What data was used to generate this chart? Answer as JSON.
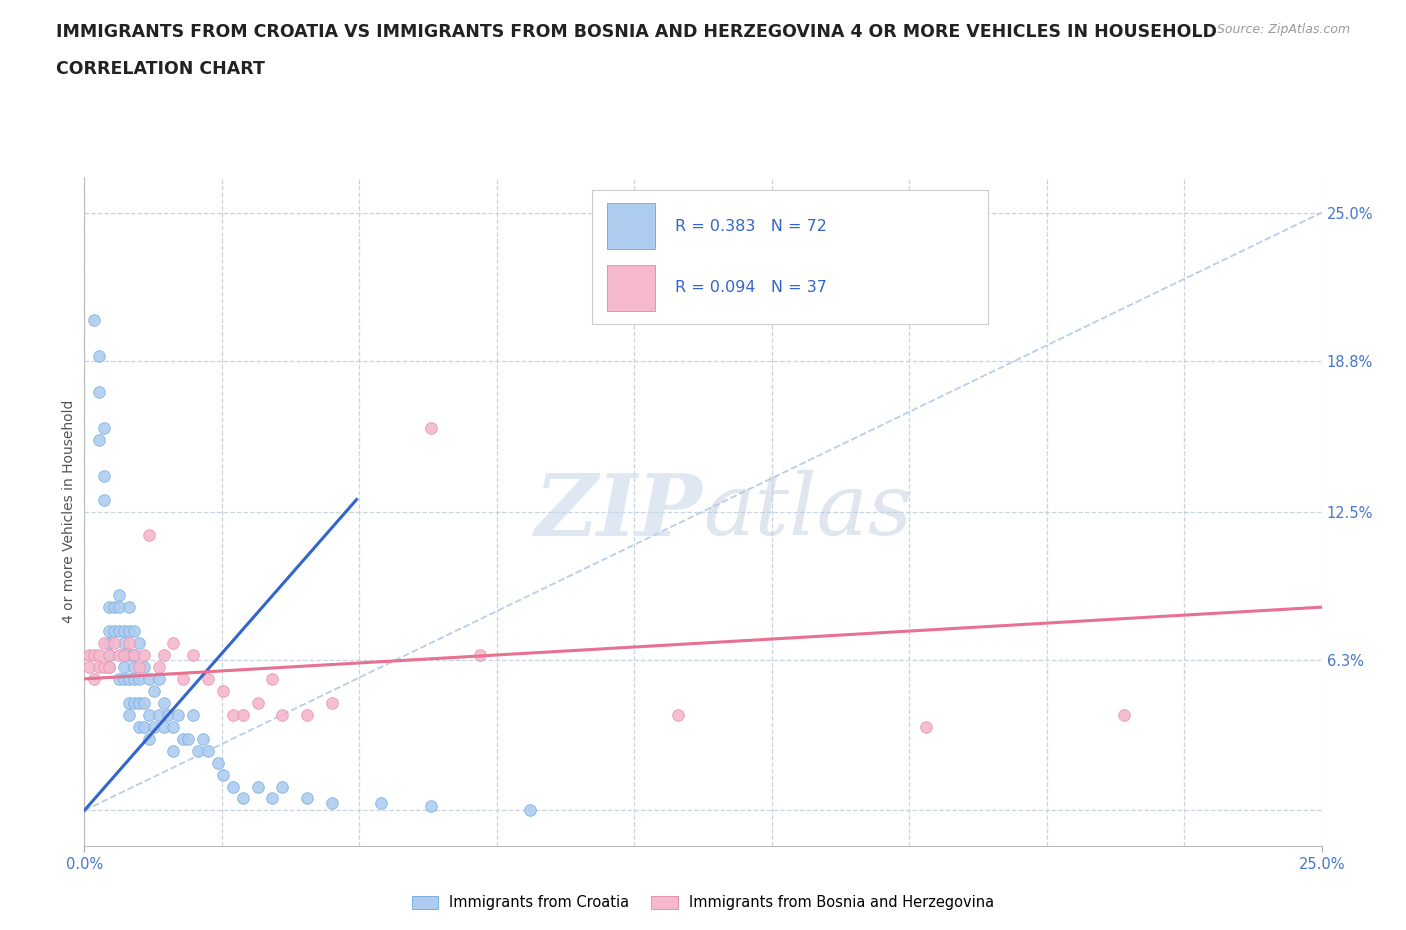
{
  "title_line1": "IMMIGRANTS FROM CROATIA VS IMMIGRANTS FROM BOSNIA AND HERZEGOVINA 4 OR MORE VEHICLES IN HOUSEHOLD",
  "title_line2": "CORRELATION CHART",
  "source_text": "Source: ZipAtlas.com",
  "watermark_zip": "ZIP",
  "watermark_atlas": "atlas",
  "ylabel": "4 or more Vehicles in Household",
  "xlim": [
    0.0,
    0.25
  ],
  "ylim": [
    -0.015,
    0.265
  ],
  "croatia_color": "#aeccf0",
  "croatia_edge": "#7aaee0",
  "bosnia_color": "#f5b8cc",
  "bosnia_edge": "#e890b0",
  "trendline_croatia_color": "#3366cc",
  "trendline_bosnia_color": "#e87090",
  "diagonal_color": "#b0c8e8",
  "R_croatia": 0.383,
  "N_croatia": 72,
  "R_bosnia": 0.094,
  "N_bosnia": 37,
  "legend_label_croatia": "Immigrants from Croatia",
  "legend_label_bosnia": "Immigrants from Bosnia and Herzegovina",
  "grid_color": "#c8d4e0",
  "background_color": "#ffffff",
  "title_fontsize": 12.5,
  "axis_label_fontsize": 10,
  "tick_fontsize": 10.5,
  "right_tick_color": "#4477cc",
  "croatia_x": [
    0.002,
    0.003,
    0.003,
    0.003,
    0.004,
    0.004,
    0.004,
    0.005,
    0.005,
    0.005,
    0.005,
    0.005,
    0.006,
    0.006,
    0.007,
    0.007,
    0.007,
    0.007,
    0.008,
    0.008,
    0.008,
    0.008,
    0.008,
    0.009,
    0.009,
    0.009,
    0.009,
    0.009,
    0.009,
    0.01,
    0.01,
    0.01,
    0.01,
    0.01,
    0.011,
    0.011,
    0.011,
    0.011,
    0.012,
    0.012,
    0.012,
    0.013,
    0.013,
    0.013,
    0.014,
    0.014,
    0.015,
    0.015,
    0.016,
    0.016,
    0.017,
    0.018,
    0.018,
    0.019,
    0.02,
    0.021,
    0.022,
    0.023,
    0.024,
    0.025,
    0.027,
    0.028,
    0.03,
    0.032,
    0.035,
    0.038,
    0.04,
    0.045,
    0.05,
    0.06,
    0.07,
    0.09
  ],
  "croatia_y": [
    0.205,
    0.175,
    0.19,
    0.155,
    0.16,
    0.14,
    0.13,
    0.085,
    0.07,
    0.075,
    0.065,
    0.06,
    0.085,
    0.075,
    0.09,
    0.085,
    0.075,
    0.055,
    0.075,
    0.065,
    0.055,
    0.07,
    0.06,
    0.085,
    0.075,
    0.065,
    0.055,
    0.045,
    0.04,
    0.065,
    0.055,
    0.045,
    0.075,
    0.06,
    0.07,
    0.055,
    0.045,
    0.035,
    0.06,
    0.045,
    0.035,
    0.055,
    0.04,
    0.03,
    0.05,
    0.035,
    0.055,
    0.04,
    0.045,
    0.035,
    0.04,
    0.035,
    0.025,
    0.04,
    0.03,
    0.03,
    0.04,
    0.025,
    0.03,
    0.025,
    0.02,
    0.015,
    0.01,
    0.005,
    0.01,
    0.005,
    0.01,
    0.005,
    0.003,
    0.003,
    0.002,
    0.0
  ],
  "bosnia_x": [
    0.001,
    0.001,
    0.002,
    0.002,
    0.003,
    0.003,
    0.004,
    0.004,
    0.005,
    0.005,
    0.006,
    0.007,
    0.008,
    0.009,
    0.01,
    0.011,
    0.012,
    0.013,
    0.015,
    0.016,
    0.018,
    0.02,
    0.022,
    0.025,
    0.028,
    0.03,
    0.032,
    0.035,
    0.038,
    0.04,
    0.045,
    0.05,
    0.07,
    0.08,
    0.12,
    0.17,
    0.21
  ],
  "bosnia_y": [
    0.065,
    0.06,
    0.065,
    0.055,
    0.06,
    0.065,
    0.06,
    0.07,
    0.065,
    0.06,
    0.07,
    0.065,
    0.065,
    0.07,
    0.065,
    0.06,
    0.065,
    0.115,
    0.06,
    0.065,
    0.07,
    0.055,
    0.065,
    0.055,
    0.05,
    0.04,
    0.04,
    0.045,
    0.055,
    0.04,
    0.04,
    0.045,
    0.16,
    0.065,
    0.04,
    0.035,
    0.04
  ],
  "croatia_trend_x": [
    0.0,
    0.055
  ],
  "croatia_trend_y": [
    0.0,
    0.13
  ],
  "bosnia_trend_x": [
    0.0,
    0.25
  ],
  "bosnia_trend_y": [
    0.055,
    0.085
  ],
  "ytick_positions": [
    0.0,
    0.063,
    0.125,
    0.188,
    0.25
  ],
  "ytick_labels": [
    "",
    "6.3%",
    "12.5%",
    "18.8%",
    "25.0%"
  ]
}
